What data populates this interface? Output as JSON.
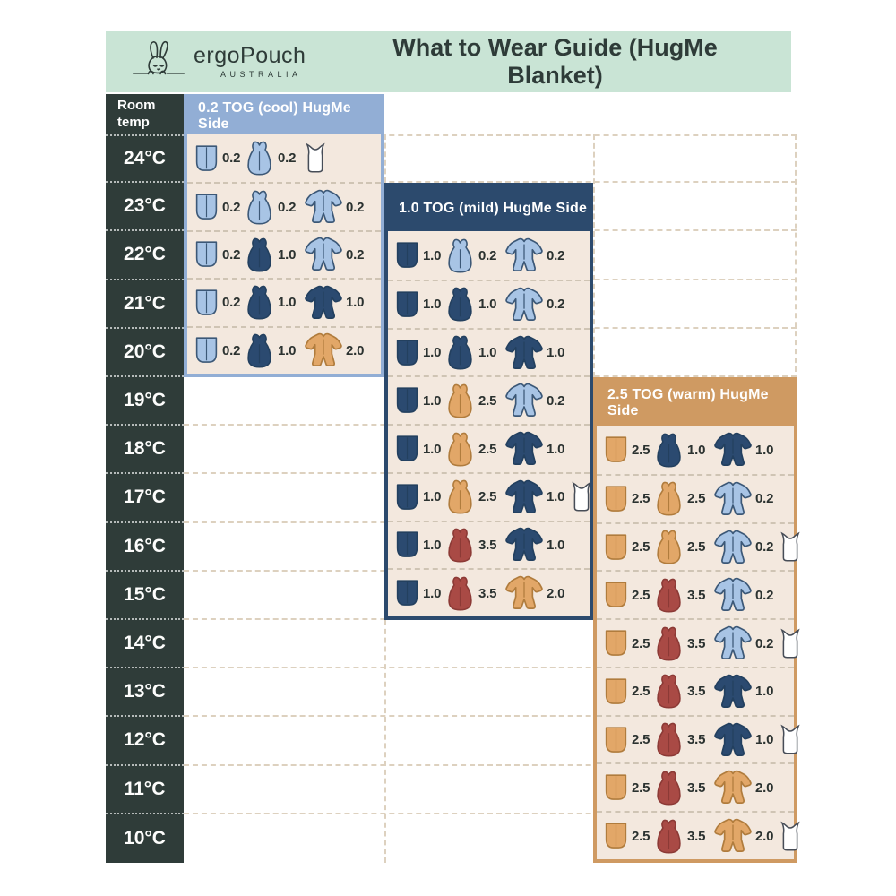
{
  "banner": {
    "brand": "ergoPouch",
    "brand_sub": "AUSTRALIA",
    "title": "What to Wear Guide (HugMe Blanket)"
  },
  "temp_column": {
    "header": "Room temp",
    "temps": [
      "24°C",
      "23°C",
      "22°C",
      "21°C",
      "20°C",
      "19°C",
      "18°C",
      "17°C",
      "16°C",
      "15°C",
      "14°C",
      "13°C",
      "12°C",
      "11°C",
      "10°C"
    ]
  },
  "palette": {
    "banner_mint": "#c9e4d5",
    "dark_slate": "#2f3c39",
    "panel_bg_cream": "#f3e8de",
    "panel_cool": "#92aed5",
    "panel_mild": "#2c4a6d",
    "panel_warm": "#cf9a62",
    "dash_line": "#ddd1bf",
    "text_dark": "#2b3230"
  },
  "icon_colors": {
    "light": {
      "fill": "#a8c4e5",
      "stroke": "#3c5877"
    },
    "navy": {
      "fill": "#2b4a70",
      "stroke": "#23405f"
    },
    "tan": {
      "fill": "#e2a768",
      "stroke": "#b07c3d"
    },
    "red": {
      "fill": "#a94a45",
      "stroke": "#8c3a36"
    },
    "white": {
      "fill": "#ffffff",
      "stroke": "#474d57"
    }
  },
  "panels": [
    {
      "key": "cool",
      "title": "0.2 TOG (cool) HugMe Side",
      "color": "#92aed5",
      "rows": [
        {
          "temp": "24°C",
          "items": [
            {
              "type": "blanket",
              "color": "light",
              "tog": "0.2"
            },
            {
              "type": "bag",
              "color": "light",
              "tog": "0.2"
            },
            {
              "type": "singlet",
              "color": "white",
              "tog": ""
            }
          ]
        },
        {
          "temp": "23°C",
          "items": [
            {
              "type": "blanket",
              "color": "light",
              "tog": "0.2"
            },
            {
              "type": "bag",
              "color": "light",
              "tog": "0.2"
            },
            {
              "type": "suit",
              "color": "light",
              "tog": "0.2"
            }
          ]
        },
        {
          "temp": "22°C",
          "items": [
            {
              "type": "blanket",
              "color": "light",
              "tog": "0.2"
            },
            {
              "type": "bag",
              "color": "navy",
              "tog": "1.0"
            },
            {
              "type": "suit",
              "color": "light",
              "tog": "0.2"
            }
          ]
        },
        {
          "temp": "21°C",
          "items": [
            {
              "type": "blanket",
              "color": "light",
              "tog": "0.2"
            },
            {
              "type": "bag",
              "color": "navy",
              "tog": "1.0"
            },
            {
              "type": "suit",
              "color": "navy",
              "tog": "1.0"
            }
          ]
        },
        {
          "temp": "20°C",
          "items": [
            {
              "type": "blanket",
              "color": "light",
              "tog": "0.2"
            },
            {
              "type": "bag",
              "color": "navy",
              "tog": "1.0"
            },
            {
              "type": "suit",
              "color": "tan",
              "tog": "2.0"
            }
          ]
        }
      ]
    },
    {
      "key": "mild",
      "title": "1.0 TOG (mild) HugMe Side",
      "color": "#2c4a6d",
      "rows": [
        {
          "temp": "22°C",
          "items": [
            {
              "type": "blanket",
              "color": "navy",
              "tog": "1.0"
            },
            {
              "type": "bag",
              "color": "light",
              "tog": "0.2"
            },
            {
              "type": "suit",
              "color": "light",
              "tog": "0.2"
            }
          ]
        },
        {
          "temp": "21°C",
          "items": [
            {
              "type": "blanket",
              "color": "navy",
              "tog": "1.0"
            },
            {
              "type": "bag",
              "color": "navy",
              "tog": "1.0"
            },
            {
              "type": "suit",
              "color": "light",
              "tog": "0.2"
            }
          ]
        },
        {
          "temp": "20°C",
          "items": [
            {
              "type": "blanket",
              "color": "navy",
              "tog": "1.0"
            },
            {
              "type": "bag",
              "color": "navy",
              "tog": "1.0"
            },
            {
              "type": "suit",
              "color": "navy",
              "tog": "1.0"
            }
          ]
        },
        {
          "temp": "19°C",
          "items": [
            {
              "type": "blanket",
              "color": "navy",
              "tog": "1.0"
            },
            {
              "type": "bag",
              "color": "tan",
              "tog": "2.5"
            },
            {
              "type": "suit",
              "color": "light",
              "tog": "0.2"
            }
          ]
        },
        {
          "temp": "18°C",
          "items": [
            {
              "type": "blanket",
              "color": "navy",
              "tog": "1.0"
            },
            {
              "type": "bag",
              "color": "tan",
              "tog": "2.5"
            },
            {
              "type": "suit",
              "color": "navy",
              "tog": "1.0"
            }
          ]
        },
        {
          "temp": "17°C",
          "items": [
            {
              "type": "blanket",
              "color": "navy",
              "tog": "1.0"
            },
            {
              "type": "bag",
              "color": "tan",
              "tog": "2.5"
            },
            {
              "type": "suit",
              "color": "navy",
              "tog": "1.0"
            },
            {
              "type": "singlet",
              "color": "white",
              "tog": ""
            }
          ]
        },
        {
          "temp": "16°C",
          "items": [
            {
              "type": "blanket",
              "color": "navy",
              "tog": "1.0"
            },
            {
              "type": "bag",
              "color": "red",
              "tog": "3.5"
            },
            {
              "type": "suit",
              "color": "navy",
              "tog": "1.0"
            }
          ]
        },
        {
          "temp": "15°C",
          "items": [
            {
              "type": "blanket",
              "color": "navy",
              "tog": "1.0"
            },
            {
              "type": "bag",
              "color": "red",
              "tog": "3.5"
            },
            {
              "type": "suit",
              "color": "tan",
              "tog": "2.0"
            }
          ]
        }
      ]
    },
    {
      "key": "warm",
      "title": "2.5 TOG (warm) HugMe Side",
      "color": "#cf9a62",
      "rows": [
        {
          "temp": "18°C",
          "items": [
            {
              "type": "blanket",
              "color": "tan",
              "tog": "2.5"
            },
            {
              "type": "bag",
              "color": "navy",
              "tog": "1.0"
            },
            {
              "type": "suit",
              "color": "navy",
              "tog": "1.0"
            }
          ]
        },
        {
          "temp": "17°C",
          "items": [
            {
              "type": "blanket",
              "color": "tan",
              "tog": "2.5"
            },
            {
              "type": "bag",
              "color": "tan",
              "tog": "2.5"
            },
            {
              "type": "suit",
              "color": "light",
              "tog": "0.2"
            }
          ]
        },
        {
          "temp": "16°C",
          "items": [
            {
              "type": "blanket",
              "color": "tan",
              "tog": "2.5"
            },
            {
              "type": "bag",
              "color": "tan",
              "tog": "2.5"
            },
            {
              "type": "suit",
              "color": "light",
              "tog": "0.2"
            },
            {
              "type": "singlet",
              "color": "white",
              "tog": ""
            }
          ]
        },
        {
          "temp": "15°C",
          "items": [
            {
              "type": "blanket",
              "color": "tan",
              "tog": "2.5"
            },
            {
              "type": "bag",
              "color": "red",
              "tog": "3.5"
            },
            {
              "type": "suit",
              "color": "light",
              "tog": "0.2"
            }
          ]
        },
        {
          "temp": "14°C",
          "items": [
            {
              "type": "blanket",
              "color": "tan",
              "tog": "2.5"
            },
            {
              "type": "bag",
              "color": "red",
              "tog": "3.5"
            },
            {
              "type": "suit",
              "color": "light",
              "tog": "0.2"
            },
            {
              "type": "singlet",
              "color": "white",
              "tog": ""
            }
          ]
        },
        {
          "temp": "13°C",
          "items": [
            {
              "type": "blanket",
              "color": "tan",
              "tog": "2.5"
            },
            {
              "type": "bag",
              "color": "red",
              "tog": "3.5"
            },
            {
              "type": "suit",
              "color": "navy",
              "tog": "1.0"
            }
          ]
        },
        {
          "temp": "12°C",
          "items": [
            {
              "type": "blanket",
              "color": "tan",
              "tog": "2.5"
            },
            {
              "type": "bag",
              "color": "red",
              "tog": "3.5"
            },
            {
              "type": "suit",
              "color": "navy",
              "tog": "1.0"
            },
            {
              "type": "singlet",
              "color": "white",
              "tog": ""
            }
          ]
        },
        {
          "temp": "11°C",
          "items": [
            {
              "type": "blanket",
              "color": "tan",
              "tog": "2.5"
            },
            {
              "type": "bag",
              "color": "red",
              "tog": "3.5"
            },
            {
              "type": "suit",
              "color": "tan",
              "tog": "2.0"
            }
          ]
        },
        {
          "temp": "10°C",
          "items": [
            {
              "type": "blanket",
              "color": "tan",
              "tog": "2.5"
            },
            {
              "type": "bag",
              "color": "red",
              "tog": "3.5"
            },
            {
              "type": "suit",
              "color": "tan",
              "tog": "2.0"
            },
            {
              "type": "singlet",
              "color": "white",
              "tog": ""
            }
          ]
        }
      ]
    }
  ],
  "chart_data": {
    "type": "table",
    "title": "What to Wear Guide (HugMe Blanket)",
    "row_header": "Room temp",
    "columns": [
      "0.2 TOG (cool) HugMe Side",
      "1.0 TOG (mild) HugMe Side",
      "2.5 TOG (warm) HugMe Side"
    ],
    "rows": [
      {
        "temp": "24°C",
        "cool": "0.2 blanket + 0.2 sleeping bag + singlet",
        "mild": "",
        "warm": ""
      },
      {
        "temp": "23°C",
        "cool": "0.2 blanket + 0.2 sleeping bag + 0.2 sleepsuit",
        "mild": "",
        "warm": ""
      },
      {
        "temp": "22°C",
        "cool": "0.2 blanket + 1.0 sleeping bag + 0.2 sleepsuit",
        "mild": "1.0 blanket + 0.2 sleeping bag + 0.2 sleepsuit",
        "warm": ""
      },
      {
        "temp": "21°C",
        "cool": "0.2 blanket + 1.0 sleeping bag + 1.0 sleepsuit",
        "mild": "1.0 blanket + 1.0 sleeping bag + 0.2 sleepsuit",
        "warm": ""
      },
      {
        "temp": "20°C",
        "cool": "0.2 blanket + 1.0 sleeping bag + 2.0 sleepsuit",
        "mild": "1.0 blanket + 1.0 sleeping bag + 1.0 sleepsuit",
        "warm": ""
      },
      {
        "temp": "19°C",
        "cool": "",
        "mild": "1.0 blanket + 2.5 sleeping bag + 0.2 sleepsuit",
        "warm": ""
      },
      {
        "temp": "18°C",
        "cool": "",
        "mild": "1.0 blanket + 2.5 sleeping bag + 1.0 sleepsuit",
        "warm": "2.5 blanket + 1.0 sleeping bag + 1.0 sleepsuit"
      },
      {
        "temp": "17°C",
        "cool": "",
        "mild": "1.0 blanket + 2.5 sleeping bag + 1.0 sleepsuit + singlet",
        "warm": "2.5 blanket + 2.5 sleeping bag + 0.2 sleepsuit"
      },
      {
        "temp": "16°C",
        "cool": "",
        "mild": "1.0 blanket + 3.5 sleeping bag + 1.0 sleepsuit",
        "warm": "2.5 blanket + 2.5 sleeping bag + 0.2 sleepsuit + singlet"
      },
      {
        "temp": "15°C",
        "cool": "",
        "mild": "1.0 blanket + 3.5 sleeping bag + 2.0 sleepsuit",
        "warm": "2.5 blanket + 3.5 sleeping bag + 0.2 sleepsuit"
      },
      {
        "temp": "14°C",
        "cool": "",
        "mild": "",
        "warm": "2.5 blanket + 3.5 sleeping bag + 0.2 sleepsuit + singlet"
      },
      {
        "temp": "13°C",
        "cool": "",
        "mild": "",
        "warm": "2.5 blanket + 3.5 sleeping bag + 1.0 sleepsuit"
      },
      {
        "temp": "12°C",
        "cool": "",
        "mild": "",
        "warm": "2.5 blanket + 3.5 sleeping bag + 1.0 sleepsuit + singlet"
      },
      {
        "temp": "11°C",
        "cool": "",
        "mild": "",
        "warm": "2.5 blanket + 3.5 sleeping bag + 2.0 sleepsuit"
      },
      {
        "temp": "10°C",
        "cool": "",
        "mild": "",
        "warm": "2.5 blanket + 3.5 sleeping bag + 2.0 sleepsuit + singlet"
      }
    ]
  }
}
